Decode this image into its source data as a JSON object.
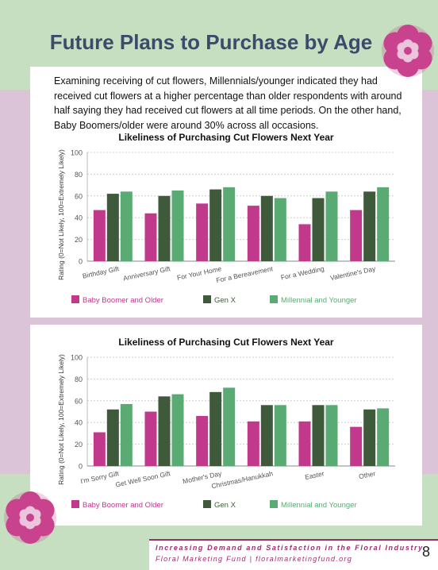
{
  "page": {
    "title": "Future Plans to Purchase by Age",
    "intro": "Examining receiving of cut flowers, Millennials/younger indicated they had received cut flowers at a higher percentage than older respondents with around half saying they had received cut flowers at all time periods.  On the other hand, Baby Boomers/older were around 30% across all occasions.",
    "footer_line1": "Increasing Demand and Satisfaction in the Floral Industry",
    "footer_line2": "Floral Marketing Fund | floralmarketingfund.org",
    "page_number": "8"
  },
  "colors": {
    "baby_boomer": "#c0398b",
    "gen_x": "#3e5a3b",
    "millennial": "#5aaa74",
    "title": "#3e4a6b",
    "flower": "#c8428e"
  },
  "chart_data": [
    {
      "type": "bar",
      "title": "Likeliness of Purchasing Cut Flowers Next Year",
      "xlabel": "",
      "ylabel": "Rating (0=Not Likely, 100=Extremely Likely)",
      "ylim": [
        0,
        100
      ],
      "yticks": [
        0,
        20,
        40,
        60,
        80,
        100
      ],
      "grid": true,
      "legend": "bottom",
      "categories": [
        "Birthday Gift",
        "Anniversary Gift",
        "For Your Home",
        "For a Bereavement",
        "For a Wedding",
        "Valentine's Day"
      ],
      "series": [
        {
          "name": "Baby Boomer and Older",
          "values": [
            47,
            44,
            53,
            51,
            34,
            47
          ]
        },
        {
          "name": "Gen X",
          "values": [
            62,
            60,
            66,
            60,
            58,
            64
          ]
        },
        {
          "name": "Millennial and Younger",
          "values": [
            64,
            65,
            68,
            58,
            64,
            68
          ]
        }
      ]
    },
    {
      "type": "bar",
      "title": "Likeliness of Purchasing Cut Flowers Next Year",
      "xlabel": "",
      "ylabel": "Rating (0=Not Likely, 100=Extremely Likely)",
      "ylim": [
        0,
        100
      ],
      "yticks": [
        0,
        20,
        40,
        60,
        80,
        100
      ],
      "grid": true,
      "legend": "bottom",
      "categories": [
        "I'm Sorry Gift",
        "Get Well Soon Gift",
        "Mother's Day",
        "Christmas/Hanukkah",
        "Easter",
        "Other"
      ],
      "series": [
        {
          "name": "Baby Boomer and Older",
          "values": [
            31,
            50,
            46,
            41,
            41,
            36
          ]
        },
        {
          "name": "Gen X",
          "values": [
            52,
            64,
            68,
            56,
            56,
            52
          ]
        },
        {
          "name": "Millennial and Younger",
          "values": [
            57,
            66,
            72,
            56,
            56,
            53
          ]
        }
      ]
    }
  ]
}
